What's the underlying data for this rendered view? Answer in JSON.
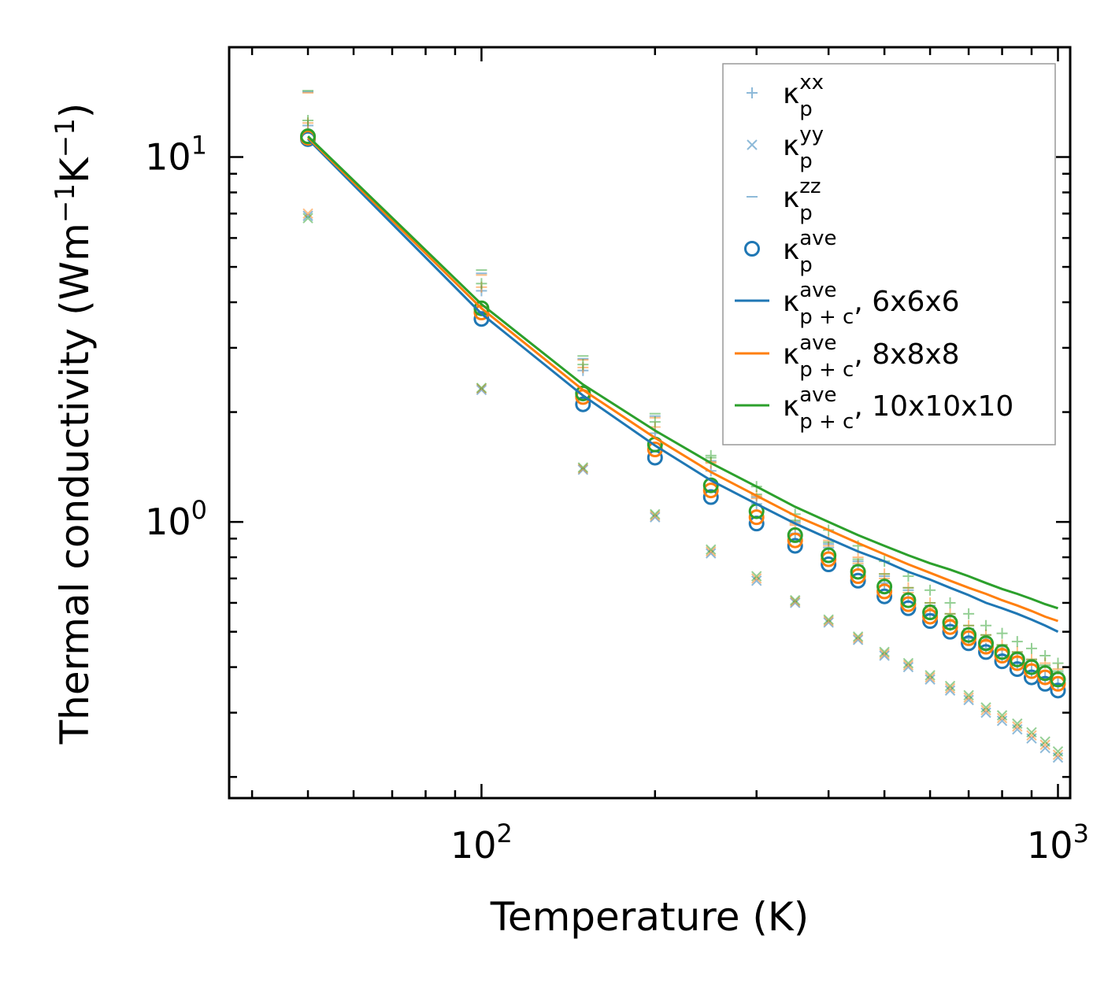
{
  "colors": {
    "blue": "#1f77b4",
    "orange": "#ff7f0e",
    "green": "#2ca02c",
    "axis": "#000000",
    "legend_border": "#999999"
  },
  "chart_data": {
    "type": "scatter",
    "xlabel": "Temperature (K)",
    "ylabel": "Thermal conductivity (Wm",
    "ylabel_exp1": "−1",
    "ylabel_mid": "K",
    "ylabel_exp2": "−1",
    "ylabel_end": ")",
    "xscale": "log",
    "yscale": "log",
    "xlim": [
      36.5,
      1050
    ],
    "ylim": [
      0.175,
      20
    ],
    "x_ticks": [
      {
        "value": 100,
        "base": "10",
        "exp": "2"
      },
      {
        "value": 1000,
        "base": "10",
        "exp": "3"
      }
    ],
    "y_ticks": [
      {
        "value": 1,
        "base": "10",
        "exp": "0"
      },
      {
        "value": 10,
        "base": "10",
        "exp": "1"
      }
    ],
    "x": [
      50,
      100,
      150,
      200,
      250,
      300,
      350,
      400,
      450,
      500,
      550,
      600,
      650,
      700,
      750,
      800,
      850,
      900,
      950,
      1000
    ],
    "series": [
      {
        "name": "6x6x6",
        "color": "blue",
        "kxx": [
          12.2,
          4.3,
          2.6,
          1.75,
          1.38,
          1.12,
          0.93,
          0.85,
          0.76,
          0.68,
          0.62,
          0.56,
          0.52,
          0.48,
          0.45,
          0.43,
          0.41,
          0.39,
          0.375,
          0.36
        ],
        "kyy": [
          6.9,
          2.3,
          1.39,
          1.03,
          0.82,
          0.69,
          0.6,
          0.53,
          0.475,
          0.43,
          0.4,
          0.37,
          0.345,
          0.325,
          0.3,
          0.285,
          0.27,
          0.255,
          0.24,
          0.226
        ],
        "kzz": [
          15.1,
          4.8,
          2.8,
          1.95,
          1.47,
          1.17,
          1.0,
          0.87,
          0.78,
          0.71,
          0.65,
          0.59,
          0.55,
          0.51,
          0.48,
          0.455,
          0.435,
          0.415,
          0.4,
          0.385
        ],
        "kave": [
          11.2,
          3.6,
          2.1,
          1.5,
          1.17,
          0.99,
          0.86,
          0.765,
          0.69,
          0.625,
          0.58,
          0.535,
          0.5,
          0.465,
          0.44,
          0.415,
          0.395,
          0.375,
          0.36,
          0.345
        ],
        "kpc": [
          11.2,
          3.72,
          2.22,
          1.62,
          1.3,
          1.12,
          0.99,
          0.9,
          0.83,
          0.78,
          0.73,
          0.695,
          0.66,
          0.63,
          0.6,
          0.58,
          0.56,
          0.54,
          0.52,
          0.5
        ]
      },
      {
        "name": "8x8x8",
        "color": "orange",
        "kxx": [
          12.4,
          4.4,
          2.65,
          1.82,
          1.45,
          1.18,
          0.98,
          0.89,
          0.8,
          0.72,
          0.66,
          0.6,
          0.56,
          0.52,
          0.49,
          0.46,
          0.44,
          0.42,
          0.41,
          0.395
        ],
        "kyy": [
          7.0,
          2.32,
          1.4,
          1.04,
          0.83,
          0.7,
          0.605,
          0.535,
          0.48,
          0.435,
          0.405,
          0.375,
          0.35,
          0.33,
          0.305,
          0.29,
          0.275,
          0.26,
          0.245,
          0.23
        ],
        "kzz": [
          15.0,
          4.75,
          2.78,
          1.93,
          1.46,
          1.16,
          0.99,
          0.86,
          0.77,
          0.7,
          0.64,
          0.58,
          0.54,
          0.5,
          0.47,
          0.445,
          0.425,
          0.405,
          0.39,
          0.375
        ],
        "kave": [
          11.3,
          3.75,
          2.2,
          1.58,
          1.22,
          1.03,
          0.89,
          0.79,
          0.71,
          0.645,
          0.595,
          0.55,
          0.515,
          0.48,
          0.455,
          0.43,
          0.41,
          0.39,
          0.375,
          0.36
        ],
        "kpc": [
          11.3,
          3.85,
          2.3,
          1.7,
          1.37,
          1.18,
          1.04,
          0.95,
          0.875,
          0.815,
          0.765,
          0.725,
          0.69,
          0.66,
          0.635,
          0.61,
          0.59,
          0.57,
          0.55,
          0.535
        ]
      },
      {
        "name": "10x10x10",
        "color": "green",
        "kxx": [
          12.6,
          4.5,
          2.7,
          1.88,
          1.52,
          1.25,
          1.05,
          0.95,
          0.86,
          0.78,
          0.71,
          0.65,
          0.6,
          0.56,
          0.52,
          0.495,
          0.47,
          0.45,
          0.43,
          0.41
        ],
        "kyy": [
          6.8,
          2.33,
          1.41,
          1.05,
          0.84,
          0.71,
          0.61,
          0.54,
          0.485,
          0.44,
          0.41,
          0.38,
          0.355,
          0.335,
          0.31,
          0.295,
          0.28,
          0.265,
          0.25,
          0.235
        ],
        "kzz": [
          15.2,
          4.9,
          2.85,
          1.98,
          1.5,
          1.19,
          1.01,
          0.88,
          0.79,
          0.72,
          0.66,
          0.6,
          0.56,
          0.52,
          0.49,
          0.46,
          0.44,
          0.42,
          0.405,
          0.39
        ],
        "kave": [
          11.4,
          3.85,
          2.25,
          1.63,
          1.26,
          1.07,
          0.92,
          0.81,
          0.73,
          0.665,
          0.61,
          0.565,
          0.53,
          0.49,
          0.465,
          0.44,
          0.42,
          0.4,
          0.385,
          0.37
        ],
        "kpc": [
          11.4,
          3.95,
          2.38,
          1.78,
          1.45,
          1.25,
          1.1,
          1.0,
          0.92,
          0.86,
          0.81,
          0.77,
          0.74,
          0.71,
          0.68,
          0.655,
          0.635,
          0.615,
          0.595,
          0.58
        ]
      }
    ],
    "legend": {
      "position": "top-right",
      "entries": [
        {
          "marker": "plus",
          "color": "blue",
          "main": "κ",
          "sup": "xx",
          "sub": "p",
          "suffix": ""
        },
        {
          "marker": "x",
          "color": "blue",
          "main": "κ",
          "sup": "yy",
          "sub": "p",
          "suffix": ""
        },
        {
          "marker": "dash",
          "color": "blue",
          "main": "κ",
          "sup": "zz",
          "sub": "p",
          "suffix": ""
        },
        {
          "marker": "circle",
          "color": "blue",
          "main": "κ",
          "sup": "ave",
          "sub": "p",
          "suffix": ""
        },
        {
          "marker": "line",
          "color": "blue",
          "main": "κ",
          "sup": "ave",
          "sub": "p + c",
          "suffix": ", 6x6x6"
        },
        {
          "marker": "line",
          "color": "orange",
          "main": "κ",
          "sup": "ave",
          "sub": "p + c",
          "suffix": ", 8x8x8"
        },
        {
          "marker": "line",
          "color": "green",
          "main": "κ",
          "sup": "ave",
          "sub": "p + c",
          "suffix": ", 10x10x10"
        }
      ]
    }
  }
}
